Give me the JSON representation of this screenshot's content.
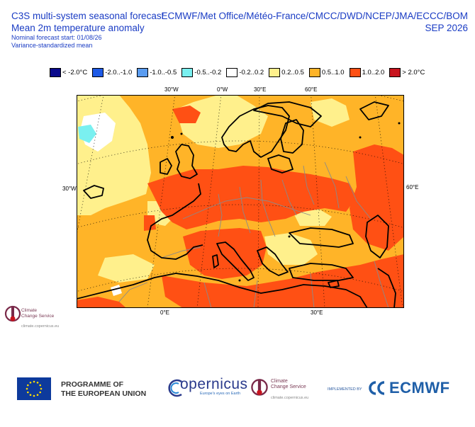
{
  "header": {
    "title_line1": "C3S multi-system seasonal forecast",
    "title_line2": "Mean 2m temperature anomaly",
    "forecast_start": "Nominal forecast start: 01/08/26",
    "stat": "Variance-standardized mean",
    "centres": "ECMWF/Met Office/Météo-France/CMCC/DWD/NCEP/JMA/ECCC/BOM",
    "valid_month": "SEP 2026"
  },
  "legend": [
    {
      "label": "< -2.0°C",
      "color": "#0a0a8c"
    },
    {
      "label": "-2.0..-1.0",
      "color": "#1e5ae6"
    },
    {
      "label": "-1.0..-0.5",
      "color": "#5a9cf0"
    },
    {
      "label": "-0.5..-0.2",
      "color": "#7af0f0"
    },
    {
      "label": "-0.2..0.2",
      "color": "#ffffff"
    },
    {
      "label": "0.2..0.5",
      "color": "#fff08c"
    },
    {
      "label": "0.5..1.0",
      "color": "#ffb428"
    },
    {
      "label": "1.0..2.0",
      "color": "#ff5014"
    },
    {
      "label": "> 2.0°C",
      "color": "#c8141e"
    }
  ],
  "map_labels": {
    "top": [
      "30°W",
      "0°W",
      "30°E",
      "60°E"
    ],
    "bottom": [
      "0°E",
      "30°E"
    ],
    "left": "30°W",
    "right": "60°E"
  },
  "logos": {
    "c3s_line1": "Climate",
    "c3s_line2": "Change Service",
    "c3s_url": "climate.copernicus.eu",
    "eu_line1": "PROGRAMME OF",
    "eu_line2": "THE EUROPEAN UNION",
    "copernicus_word": "opernicus",
    "copernicus_tagline": "Europe's eyes on Earth",
    "implemented_by": "IMPLEMENTED BY",
    "ecmwf_word": "ECMWF"
  }
}
